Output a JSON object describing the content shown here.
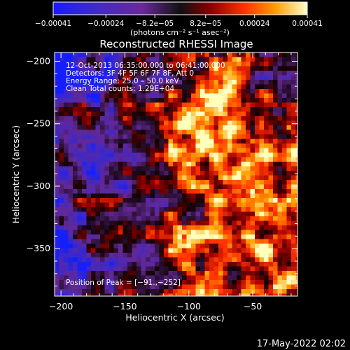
{
  "chart_data": {
    "type": "heatmap",
    "title": "Reconstructed RHESSI Image",
    "xlabel": "Heliocentric X (arcsec)",
    "ylabel": "Heliocentric Y (arcsec)",
    "xlim": [
      -205,
      -15
    ],
    "ylim": [
      -388,
      -193
    ],
    "x_ticks": [
      -200,
      -150,
      -100,
      -50
    ],
    "x_tick_labels": [
      "−200",
      "−150",
      "−100",
      "−50"
    ],
    "y_ticks": [
      -200,
      -250,
      -300,
      -350
    ],
    "y_tick_labels": [
      "−200",
      "−250",
      "−300",
      "−350"
    ],
    "annotations": [
      "12-Oct-2013 06:35:00.000 to 06:41:00.000",
      "Detectors: 3F 4F 5F 6F 7F 8F, Att 0",
      "Energy Range: 25.0 – 50.0 keV",
      "Clean    Total counts: 1.29E+04"
    ],
    "peak_label": "Position of Peak = [−91.,−252]",
    "peak_position": [
      -91,
      -252
    ],
    "colorbar": {
      "range": [
        -0.00041,
        0.00041
      ],
      "tick_labels": [
        "−0.00041",
        "−0.00024",
        "−8.2e−05",
        "8.2e−05",
        "0.00024",
        "0.00041"
      ],
      "unit_label": "(photons cm⁻² s⁻¹ asec⁻²)"
    },
    "grid": false
  },
  "timestamp": "17-May-2022 02:02"
}
